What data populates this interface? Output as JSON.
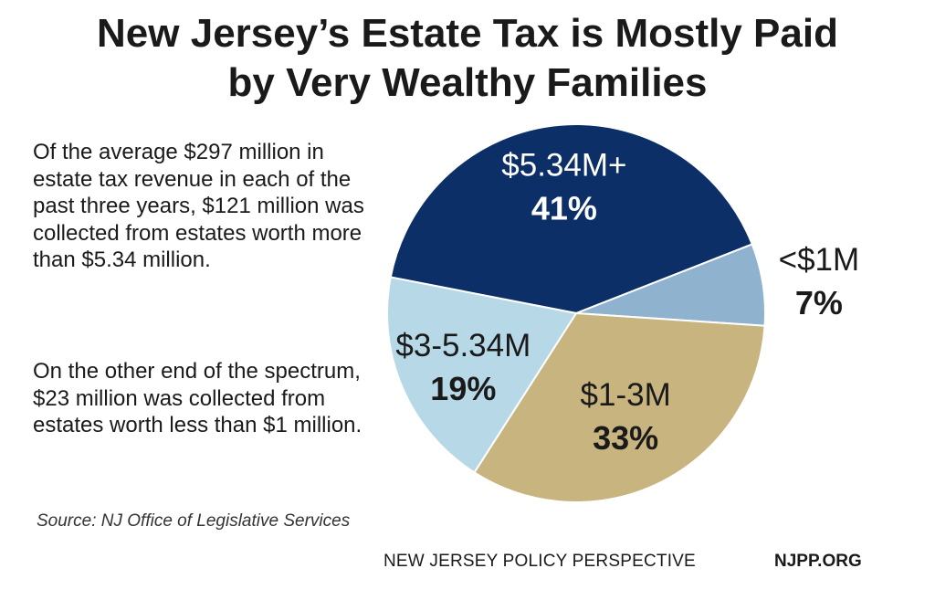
{
  "title_line1": "New Jersey’s Estate Tax is Mostly Paid",
  "title_line2": "by Very Wealthy Families",
  "paragraph1": "Of the average $297 million in estate tax revenue in each of the past three years, $121 million was collected from estates worth more than $5.34 million.",
  "paragraph2": "On the other end of the spectrum, $23 million was collected from estates worth less than $1 million.",
  "source": "Source: NJ Office of Legislative Services",
  "footer_org": "NEW JERSEY POLICY PERSPECTIVE",
  "footer_url": "NJPP.ORG",
  "chart_data": {
    "type": "pie",
    "title": "New Jersey’s Estate Tax is Mostly Paid by Very Wealthy Families",
    "slices": [
      {
        "label": "$5.34M+",
        "pct_label": "41%",
        "value": 41,
        "color": "#0d2f67",
        "text_color": "#ffffff"
      },
      {
        "label": "<$1M",
        "pct_label": "7%",
        "value": 7,
        "color": "#8fb3cf",
        "text_color": "#1a1a1a"
      },
      {
        "label": "$1-3M",
        "pct_label": "33%",
        "value": 33,
        "color": "#c7b47e",
        "text_color": "#1a1a1a"
      },
      {
        "label": "$3-5.34M",
        "pct_label": "19%",
        "value": 19,
        "color": "#b7d8e7",
        "text_color": "#1a1a1a"
      }
    ]
  }
}
